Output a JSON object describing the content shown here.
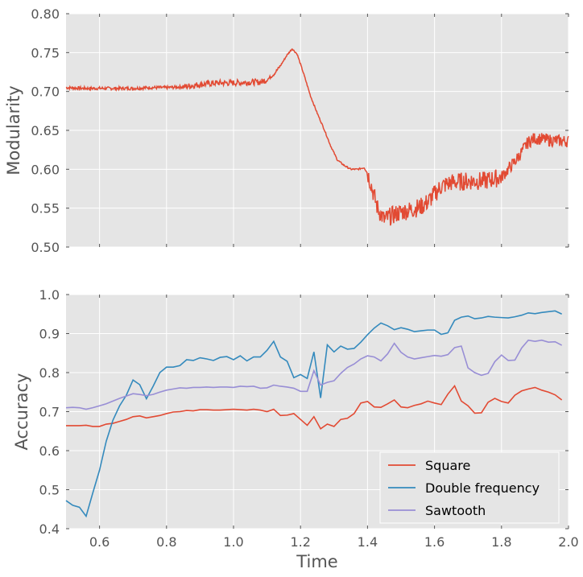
{
  "chart_data": [
    {
      "type": "line",
      "title": "",
      "xlabel": "",
      "ylabel": "Modularity",
      "xlim": [
        0.5,
        2.0
      ],
      "ylim": [
        0.5,
        0.8
      ],
      "yticks": [
        "0.50",
        "0.55",
        "0.60",
        "0.65",
        "0.70",
        "0.75",
        "0.80"
      ],
      "grid": true,
      "noise": true,
      "series": [
        {
          "color": "#E24A33",
          "x": [
            0.5,
            0.55,
            0.6,
            0.65,
            0.7,
            0.75,
            0.8,
            0.85,
            0.9,
            0.95,
            1.0,
            1.05,
            1.08,
            1.1,
            1.12,
            1.14,
            1.16,
            1.175,
            1.19,
            1.21,
            1.23,
            1.25,
            1.27,
            1.29,
            1.31,
            1.33,
            1.35,
            1.37,
            1.39,
            1.4,
            1.41,
            1.42,
            1.43,
            1.45,
            1.47,
            1.5,
            1.53,
            1.56,
            1.58,
            1.6,
            1.62,
            1.65,
            1.7,
            1.75,
            1.8,
            1.82,
            1.84,
            1.86,
            1.88,
            1.9,
            1.95,
            2.0
          ],
          "y": [
            0.705,
            0.704,
            0.704,
            0.704,
            0.704,
            0.705,
            0.705,
            0.706,
            0.709,
            0.711,
            0.711,
            0.712,
            0.712,
            0.715,
            0.722,
            0.733,
            0.747,
            0.755,
            0.748,
            0.722,
            0.694,
            0.672,
            0.652,
            0.63,
            0.612,
            0.605,
            0.6,
            0.6,
            0.602,
            0.595,
            0.582,
            0.565,
            0.55,
            0.535,
            0.54,
            0.545,
            0.548,
            0.552,
            0.558,
            0.568,
            0.578,
            0.583,
            0.585,
            0.585,
            0.59,
            0.6,
            0.61,
            0.622,
            0.635,
            0.64,
            0.637,
            0.636
          ]
        }
      ]
    },
    {
      "type": "line",
      "title": "",
      "xlabel": "Time",
      "ylabel": "Accuracy",
      "xlim": [
        0.5,
        2.0
      ],
      "ylim": [
        0.4,
        1.0
      ],
      "xticks": [
        "0.6",
        "0.8",
        "1.0",
        "1.2",
        "1.4",
        "1.6",
        "1.8",
        "2.0"
      ],
      "yticks": [
        "0.4",
        "0.5",
        "0.6",
        "0.7",
        "0.8",
        "0.9",
        "1.0"
      ],
      "grid": true,
      "legend": "bottom-right",
      "series": [
        {
          "name": "Square",
          "color": "#E24A33",
          "x": [
            0.5,
            0.52,
            0.54,
            0.56,
            0.58,
            0.6,
            0.62,
            0.64,
            0.66,
            0.68,
            0.7,
            0.72,
            0.74,
            0.76,
            0.78,
            0.8,
            0.82,
            0.84,
            0.86,
            0.88,
            0.9,
            0.92,
            0.94,
            0.96,
            0.98,
            1.0,
            1.02,
            1.04,
            1.06,
            1.08,
            1.1,
            1.12,
            1.14,
            1.16,
            1.18,
            1.2,
            1.22,
            1.24,
            1.26,
            1.28,
            1.3,
            1.32,
            1.34,
            1.36,
            1.38,
            1.4,
            1.42,
            1.44,
            1.46,
            1.48,
            1.5,
            1.52,
            1.54,
            1.56,
            1.58,
            1.6,
            1.62,
            1.64,
            1.66,
            1.68,
            1.7,
            1.72,
            1.74,
            1.76,
            1.78,
            1.8,
            1.82,
            1.84,
            1.86,
            1.88,
            1.9,
            1.92,
            1.94,
            1.96,
            1.98
          ],
          "y": [
            0.664,
            0.664,
            0.664,
            0.665,
            0.662,
            0.662,
            0.668,
            0.67,
            0.675,
            0.68,
            0.687,
            0.689,
            0.684,
            0.687,
            0.69,
            0.695,
            0.699,
            0.7,
            0.703,
            0.702,
            0.705,
            0.705,
            0.704,
            0.704,
            0.705,
            0.706,
            0.705,
            0.704,
            0.706,
            0.704,
            0.7,
            0.706,
            0.69,
            0.691,
            0.695,
            0.68,
            0.665,
            0.687,
            0.656,
            0.668,
            0.662,
            0.68,
            0.683,
            0.695,
            0.722,
            0.726,
            0.712,
            0.711,
            0.72,
            0.73,
            0.712,
            0.71,
            0.716,
            0.72,
            0.727,
            0.722,
            0.718,
            0.745,
            0.766,
            0.727,
            0.715,
            0.696,
            0.697,
            0.724,
            0.734,
            0.726,
            0.722,
            0.742,
            0.753,
            0.758,
            0.762,
            0.755,
            0.75,
            0.743,
            0.73
          ]
        },
        {
          "name": "Double frequency",
          "color": "#348ABD",
          "x": [
            0.5,
            0.52,
            0.54,
            0.56,
            0.58,
            0.6,
            0.62,
            0.64,
            0.66,
            0.68,
            0.7,
            0.72,
            0.74,
            0.76,
            0.78,
            0.8,
            0.82,
            0.84,
            0.86,
            0.88,
            0.9,
            0.92,
            0.94,
            0.96,
            0.98,
            1.0,
            1.02,
            1.04,
            1.06,
            1.08,
            1.1,
            1.12,
            1.14,
            1.16,
            1.18,
            1.2,
            1.22,
            1.24,
            1.26,
            1.28,
            1.3,
            1.32,
            1.34,
            1.36,
            1.38,
            1.4,
            1.42,
            1.44,
            1.46,
            1.48,
            1.5,
            1.52,
            1.54,
            1.56,
            1.58,
            1.6,
            1.62,
            1.64,
            1.66,
            1.68,
            1.7,
            1.72,
            1.74,
            1.76,
            1.78,
            1.8,
            1.82,
            1.84,
            1.86,
            1.88,
            1.9,
            1.92,
            1.94,
            1.96,
            1.98
          ],
          "y": [
            0.472,
            0.46,
            0.455,
            0.432,
            0.492,
            0.55,
            0.624,
            0.678,
            0.715,
            0.742,
            0.781,
            0.769,
            0.733,
            0.765,
            0.8,
            0.814,
            0.814,
            0.818,
            0.833,
            0.831,
            0.838,
            0.835,
            0.831,
            0.839,
            0.841,
            0.833,
            0.843,
            0.83,
            0.84,
            0.84,
            0.857,
            0.88,
            0.84,
            0.829,
            0.787,
            0.795,
            0.785,
            0.853,
            0.735,
            0.871,
            0.853,
            0.868,
            0.86,
            0.862,
            0.878,
            0.897,
            0.914,
            0.927,
            0.92,
            0.91,
            0.915,
            0.911,
            0.905,
            0.907,
            0.909,
            0.909,
            0.898,
            0.902,
            0.934,
            0.942,
            0.945,
            0.938,
            0.94,
            0.944,
            0.942,
            0.941,
            0.94,
            0.943,
            0.947,
            0.953,
            0.951,
            0.954,
            0.956,
            0.958,
            0.95
          ]
        },
        {
          "name": "Sawtooth",
          "color": "#988ED5",
          "x": [
            0.5,
            0.52,
            0.54,
            0.56,
            0.58,
            0.6,
            0.62,
            0.64,
            0.66,
            0.68,
            0.7,
            0.72,
            0.74,
            0.76,
            0.78,
            0.8,
            0.82,
            0.84,
            0.86,
            0.88,
            0.9,
            0.92,
            0.94,
            0.96,
            0.98,
            1.0,
            1.02,
            1.04,
            1.06,
            1.08,
            1.1,
            1.12,
            1.14,
            1.16,
            1.18,
            1.2,
            1.22,
            1.24,
            1.26,
            1.28,
            1.3,
            1.32,
            1.34,
            1.36,
            1.38,
            1.4,
            1.42,
            1.44,
            1.46,
            1.48,
            1.5,
            1.52,
            1.54,
            1.56,
            1.58,
            1.6,
            1.62,
            1.64,
            1.66,
            1.68,
            1.7,
            1.72,
            1.74,
            1.76,
            1.78,
            1.8,
            1.82,
            1.84,
            1.86,
            1.88,
            1.9,
            1.92,
            1.94,
            1.96,
            1.98
          ],
          "y": [
            0.71,
            0.711,
            0.71,
            0.706,
            0.71,
            0.715,
            0.72,
            0.727,
            0.734,
            0.74,
            0.746,
            0.744,
            0.741,
            0.744,
            0.75,
            0.755,
            0.758,
            0.761,
            0.76,
            0.762,
            0.762,
            0.763,
            0.762,
            0.763,
            0.763,
            0.762,
            0.765,
            0.764,
            0.765,
            0.76,
            0.761,
            0.768,
            0.765,
            0.763,
            0.76,
            0.752,
            0.752,
            0.805,
            0.768,
            0.775,
            0.779,
            0.798,
            0.813,
            0.822,
            0.835,
            0.843,
            0.84,
            0.83,
            0.848,
            0.875,
            0.852,
            0.84,
            0.835,
            0.838,
            0.841,
            0.844,
            0.842,
            0.846,
            0.864,
            0.868,
            0.812,
            0.8,
            0.793,
            0.798,
            0.828,
            0.845,
            0.831,
            0.832,
            0.863,
            0.883,
            0.88,
            0.883,
            0.878,
            0.879,
            0.87
          ]
        }
      ]
    }
  ]
}
